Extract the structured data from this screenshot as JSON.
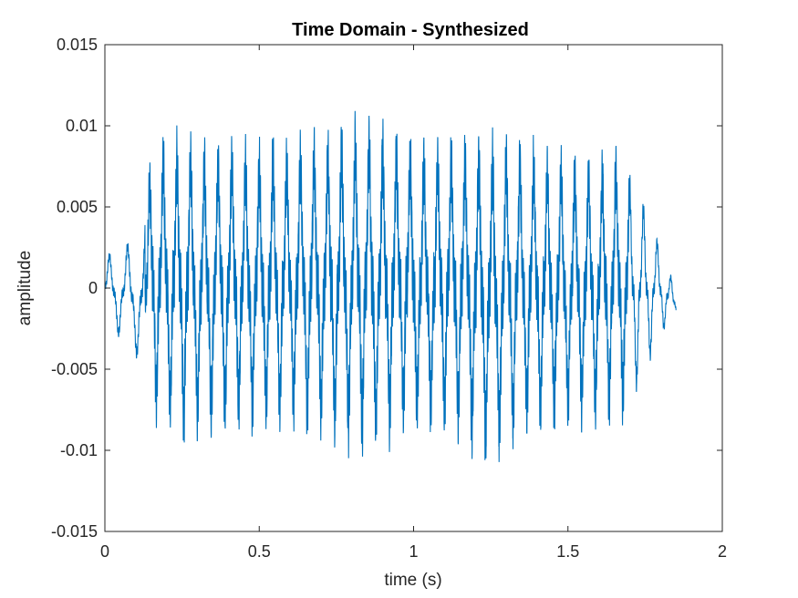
{
  "chart_data": {
    "type": "line",
    "title": "Time Domain - Synthesized",
    "xlabel": "time (s)",
    "ylabel": "amplitude",
    "xlim": [
      0,
      2
    ],
    "ylim": [
      -0.015,
      0.015
    ],
    "xticks": [
      "0",
      "0.5",
      "1",
      "1.5",
      "2"
    ],
    "yticks": [
      "0.015",
      "0.01",
      "0.005",
      "0",
      "-0.005",
      "-0.01",
      "-0.015"
    ],
    "grid": false,
    "series_color": "#0072BD",
    "signal_duration_s": 1.85,
    "envelope": {
      "t": [
        0,
        0.03,
        0.06,
        0.1,
        0.13,
        0.15,
        0.2,
        0.25,
        0.3,
        0.35,
        0.4,
        0.45,
        0.5,
        0.55,
        0.6,
        0.65,
        0.7,
        0.75,
        0.8,
        0.85,
        0.9,
        0.95,
        1.0,
        1.05,
        1.1,
        1.15,
        1.2,
        1.25,
        1.3,
        1.35,
        1.4,
        1.45,
        1.5,
        1.55,
        1.6,
        1.65,
        1.7,
        1.75,
        1.8,
        1.85
      ],
      "upper": [
        0.0022,
        0.0025,
        0.003,
        0.0032,
        0.0045,
        0.0085,
        0.009,
        0.0092,
        0.0088,
        0.0085,
        0.0088,
        0.0086,
        0.0085,
        0.0088,
        0.0085,
        0.009,
        0.0092,
        0.0095,
        0.0098,
        0.0102,
        0.0096,
        0.0093,
        0.009,
        0.0088,
        0.0091,
        0.009,
        0.0093,
        0.0089,
        0.0088,
        0.0087,
        0.0085,
        0.008,
        0.0082,
        0.008,
        0.0078,
        0.0083,
        0.0075,
        0.0055,
        0.0027,
        0.0
      ],
      "lower": [
        -0.002,
        -0.003,
        -0.0035,
        -0.0045,
        -0.0055,
        -0.0072,
        -0.0085,
        -0.009,
        -0.0088,
        -0.0087,
        -0.0085,
        -0.0084,
        -0.0083,
        -0.0084,
        -0.0082,
        -0.0085,
        -0.0088,
        -0.0093,
        -0.0095,
        -0.0098,
        -0.0092,
        -0.0088,
        -0.0087,
        -0.0085,
        -0.0088,
        -0.009,
        -0.01,
        -0.0105,
        -0.0095,
        -0.0088,
        -0.0085,
        -0.0082,
        -0.0083,
        -0.0082,
        -0.0078,
        -0.0079,
        -0.0076,
        -0.0056,
        -0.003,
        -0.002
      ]
    }
  }
}
